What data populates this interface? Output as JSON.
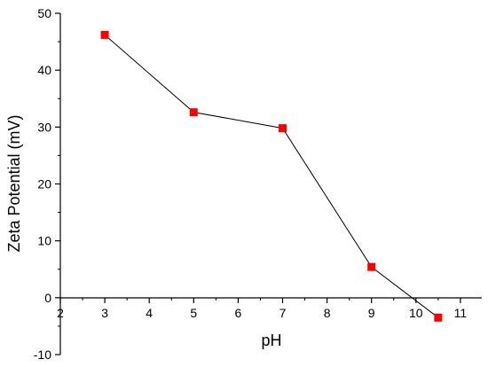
{
  "chart_data": {
    "type": "line",
    "title": "",
    "xlabel": "pH",
    "ylabel": "Zeta Potential (mV)",
    "xlim": [
      2,
      11.5
    ],
    "ylim": [
      -10,
      50
    ],
    "x_ticks": [
      2,
      3,
      4,
      5,
      6,
      7,
      8,
      9,
      10,
      11
    ],
    "y_ticks": [
      -10,
      0,
      10,
      20,
      30,
      40,
      50
    ],
    "grid": false,
    "legend": "none",
    "series": [
      {
        "x": [
          3,
          5,
          7,
          9,
          10.5
        ],
        "values": [
          46.2,
          32.6,
          29.8,
          5.4,
          -3.5
        ],
        "marker": "square",
        "marker_color": "#ff0000",
        "line_color": "#000000"
      }
    ]
  }
}
